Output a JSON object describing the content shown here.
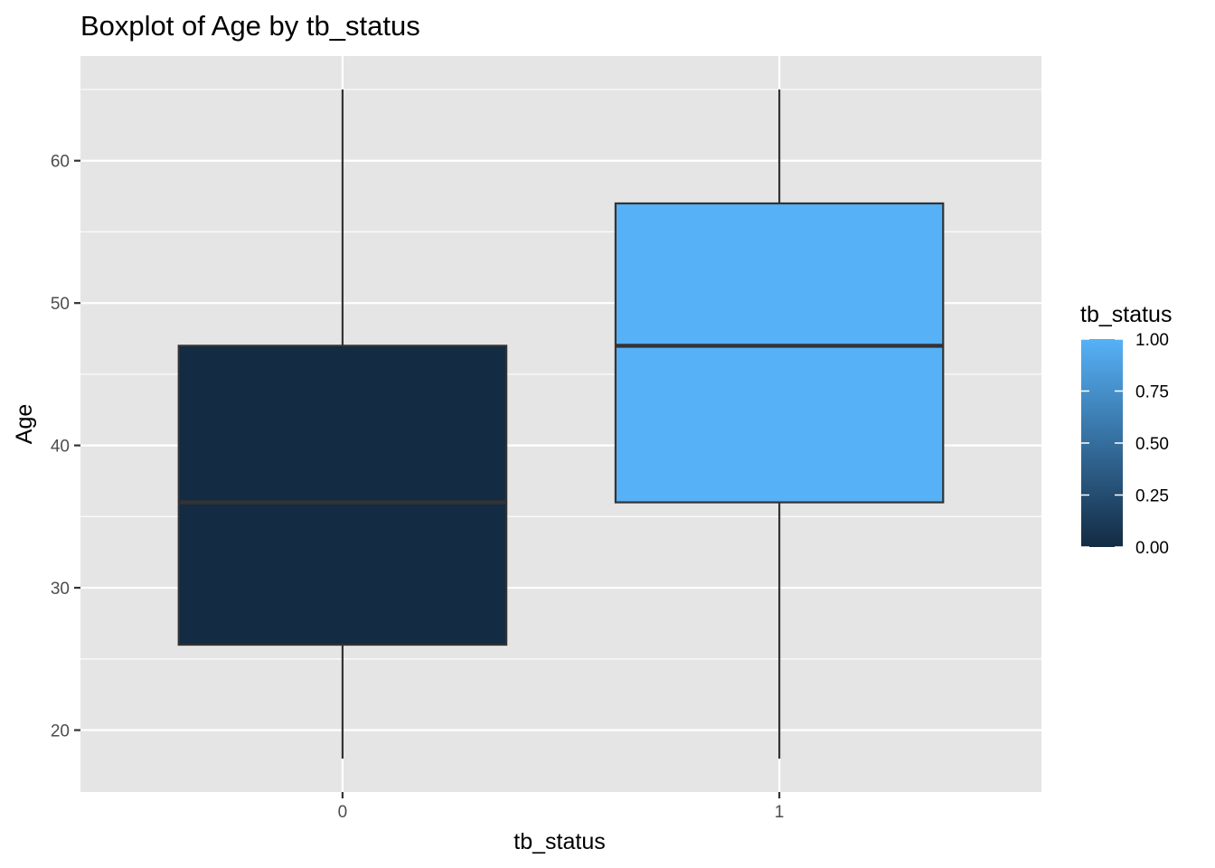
{
  "chart_data": {
    "type": "boxplot",
    "title": "Boxplot of Age by tb_status",
    "xlabel": "tb_status",
    "ylabel": "Age",
    "categories": [
      "0",
      "1"
    ],
    "boxes": [
      {
        "category": "0",
        "fill_value": 0,
        "whisker_low": 18,
        "q1": 26,
        "median": 36,
        "q3": 47,
        "whisker_high": 65
      },
      {
        "category": "1",
        "fill_value": 1,
        "whisker_low": 18,
        "q1": 36,
        "median": 47,
        "q3": 57,
        "whisker_high": 65
      }
    ],
    "ylim": [
      15.65,
      67.35
    ],
    "y_ticks": [
      20,
      30,
      40,
      50,
      60
    ],
    "y_tick_labels": [
      "20",
      "30",
      "40",
      "50",
      "60"
    ],
    "grid": true,
    "legend": {
      "title": "tb_status",
      "placement": "right",
      "type": "colorbar",
      "range": [
        0,
        1
      ],
      "breaks": [
        0,
        0.25,
        0.5,
        0.75,
        1
      ],
      "labels": [
        "0.00",
        "0.25",
        "0.50",
        "0.75",
        "1.00"
      ],
      "low_color": "#132B43",
      "high_color": "#56B1F7"
    },
    "colors": {
      "panel_background": "#E5E5E5",
      "grid_line": "#FFFFFF",
      "box_outline": "#333333",
      "whisker": "#333333"
    }
  }
}
